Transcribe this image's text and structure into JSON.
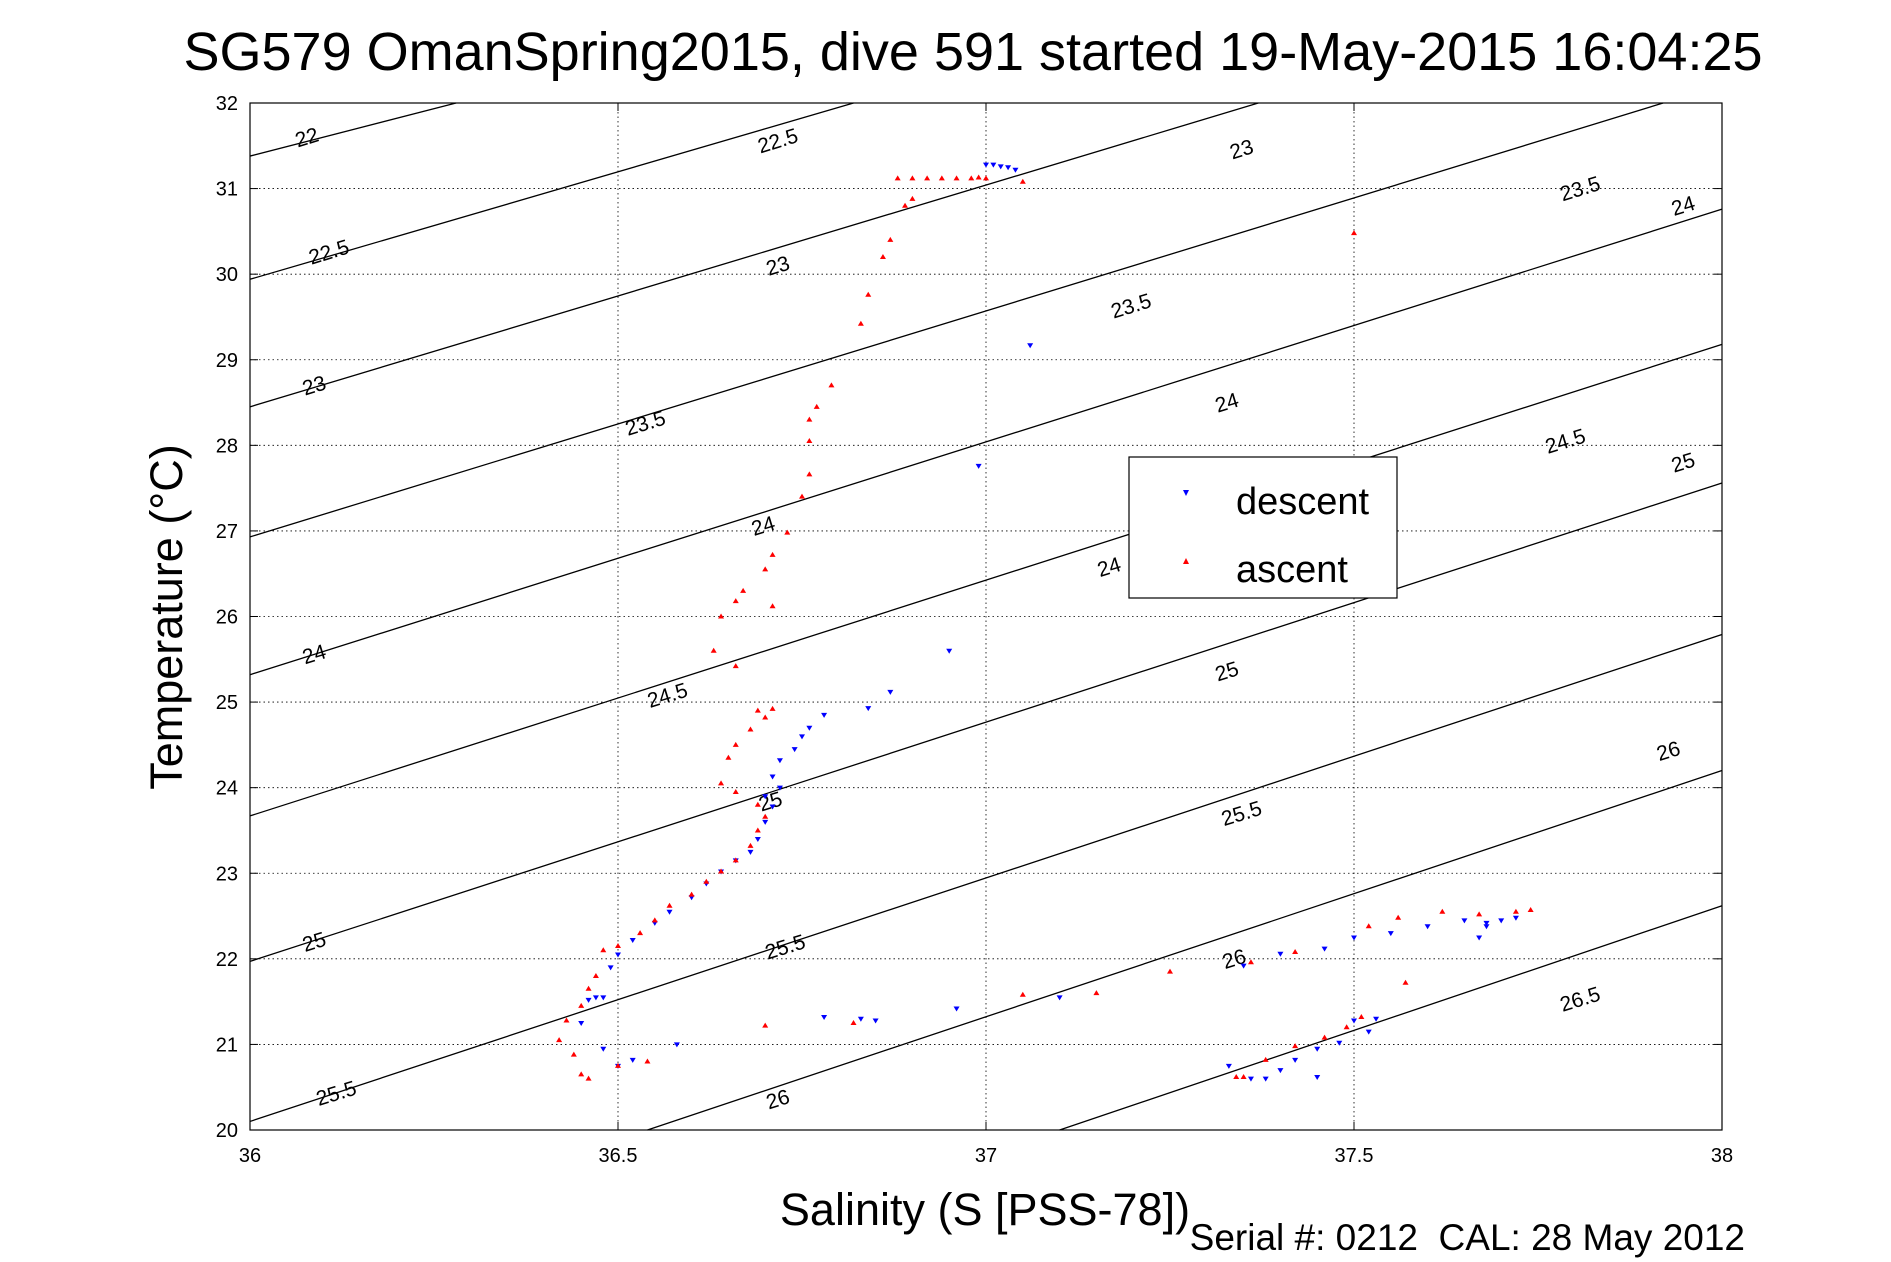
{
  "chart_data": {
    "type": "scatter",
    "title": "SG579 OmanSpring2015, dive 591 started 19-May-2015 16:04:25",
    "xlabel": "Salinity (S [PSS-78])",
    "ylabel": "Temperature (°C)",
    "xlim": [
      36,
      38
    ],
    "ylim": [
      20,
      32
    ],
    "x_ticks": [
      "36",
      "36.5",
      "37",
      "37.5",
      "38"
    ],
    "y_ticks": [
      "20",
      "21",
      "22",
      "23",
      "24",
      "25",
      "26",
      "27",
      "28",
      "29",
      "30",
      "31",
      "32"
    ],
    "grid": true,
    "legend_position": "upper-right",
    "footer": "Serial #: 0212  CAL: 28 May 2012",
    "contours": [
      {
        "label": "22",
        "points": [
          [
            36,
            31.38
          ],
          [
            36.28,
            32
          ]
        ]
      },
      {
        "label": "22.5",
        "points": [
          [
            36,
            29.94
          ],
          [
            36.82,
            32
          ]
        ]
      },
      {
        "label": "23",
        "points": [
          [
            36,
            28.45
          ],
          [
            37.37,
            32
          ]
        ]
      },
      {
        "label": "23.5",
        "points": [
          [
            36,
            26.93
          ],
          [
            37.92,
            32
          ]
        ]
      },
      {
        "label": "24",
        "points": [
          [
            36,
            25.32
          ],
          [
            38,
            30.76
          ]
        ]
      },
      {
        "label": "24.5",
        "points": [
          [
            36,
            23.67
          ],
          [
            38,
            29.18
          ]
        ]
      },
      {
        "label": "25",
        "points": [
          [
            36,
            21.97
          ],
          [
            38,
            27.56
          ]
        ]
      },
      {
        "label": "25.5",
        "points": [
          [
            36,
            20.1
          ],
          [
            38,
            25.79
          ]
        ]
      },
      {
        "label": "26",
        "points": [
          [
            36.54,
            20
          ],
          [
            38,
            24.2
          ]
        ]
      },
      {
        "label": "26.5",
        "points": [
          [
            37.1,
            20
          ],
          [
            38,
            22.62
          ]
        ]
      }
    ],
    "contour_labels": [
      {
        "text": "22",
        "x": 36.08,
        "y": 31.52
      },
      {
        "text": "22.5",
        "x": 36.72,
        "y": 31.48
      },
      {
        "text": "22.5",
        "x": 36.11,
        "y": 30.18
      },
      {
        "text": "23",
        "x": 37.35,
        "y": 31.38
      },
      {
        "text": "23",
        "x": 36.72,
        "y": 30.02
      },
      {
        "text": "23",
        "x": 36.09,
        "y": 28.62
      },
      {
        "text": "23.5",
        "x": 37.81,
        "y": 30.92
      },
      {
        "text": "23.5",
        "x": 37.2,
        "y": 29.55
      },
      {
        "text": "23.5",
        "x": 36.54,
        "y": 28.18
      },
      {
        "text": "24",
        "x": 37.95,
        "y": 30.72
      },
      {
        "text": "24",
        "x": 37.33,
        "y": 28.42
      },
      {
        "text": "24",
        "x": 36.7,
        "y": 26.98
      },
      {
        "text": "24",
        "x": 36.09,
        "y": 25.48
      },
      {
        "text": "24",
        "x": 37.17,
        "y": 26.5
      },
      {
        "text": "24.5",
        "x": 37.79,
        "y": 27.97
      },
      {
        "text": "24.5",
        "x": 36.57,
        "y": 25.0
      },
      {
        "text": "25",
        "x": 37.95,
        "y": 27.72
      },
      {
        "text": "25",
        "x": 37.33,
        "y": 25.28
      },
      {
        "text": "25",
        "x": 36.71,
        "y": 23.76
      },
      {
        "text": "25",
        "x": 36.09,
        "y": 22.12
      },
      {
        "text": "25.5",
        "x": 37.35,
        "y": 23.62
      },
      {
        "text": "25.5",
        "x": 36.73,
        "y": 22.06
      },
      {
        "text": "25.5",
        "x": 36.12,
        "y": 20.35
      },
      {
        "text": "26",
        "x": 37.93,
        "y": 24.35
      },
      {
        "text": "26",
        "x": 37.34,
        "y": 21.92
      },
      {
        "text": "26",
        "x": 36.72,
        "y": 20.28
      },
      {
        "text": "26.5",
        "x": 37.81,
        "y": 21.45
      }
    ],
    "series": [
      {
        "name": "descent",
        "color": "#0000ff",
        "marker": "triangle-down",
        "points": [
          [
            37.0,
            31.28
          ],
          [
            37.01,
            31.28
          ],
          [
            37.02,
            31.26
          ],
          [
            37.03,
            31.25
          ],
          [
            37.04,
            31.22
          ],
          [
            37.06,
            29.17
          ],
          [
            36.99,
            27.76
          ],
          [
            36.95,
            25.6
          ],
          [
            36.87,
            25.12
          ],
          [
            36.84,
            24.93
          ],
          [
            36.78,
            24.85
          ],
          [
            36.76,
            24.7
          ],
          [
            36.75,
            24.6
          ],
          [
            36.74,
            24.45
          ],
          [
            36.72,
            24.32
          ],
          [
            36.71,
            24.13
          ],
          [
            36.72,
            24.0
          ],
          [
            36.7,
            23.9
          ],
          [
            36.71,
            23.78
          ],
          [
            36.7,
            23.6
          ],
          [
            36.69,
            23.4
          ],
          [
            36.68,
            23.25
          ],
          [
            36.66,
            23.15
          ],
          [
            36.64,
            23.02
          ],
          [
            36.62,
            22.88
          ],
          [
            36.6,
            22.72
          ],
          [
            36.57,
            22.55
          ],
          [
            36.55,
            22.42
          ],
          [
            36.52,
            22.22
          ],
          [
            36.5,
            22.05
          ],
          [
            36.49,
            21.9
          ],
          [
            36.48,
            21.55
          ],
          [
            36.47,
            21.55
          ],
          [
            36.46,
            21.52
          ],
          [
            36.45,
            21.25
          ],
          [
            36.48,
            20.95
          ],
          [
            36.5,
            20.75
          ],
          [
            36.52,
            20.82
          ],
          [
            36.58,
            21.0
          ],
          [
            36.78,
            21.32
          ],
          [
            36.83,
            21.3
          ],
          [
            36.85,
            21.28
          ],
          [
            36.96,
            21.42
          ],
          [
            37.1,
            21.55
          ],
          [
            37.35,
            21.92
          ],
          [
            37.4,
            22.06
          ],
          [
            37.46,
            22.12
          ],
          [
            37.5,
            22.25
          ],
          [
            37.55,
            22.3
          ],
          [
            37.6,
            22.38
          ],
          [
            37.65,
            22.45
          ],
          [
            37.68,
            22.42
          ],
          [
            37.7,
            22.45
          ],
          [
            37.72,
            22.48
          ],
          [
            37.68,
            22.38
          ],
          [
            37.67,
            22.25
          ],
          [
            37.52,
            21.15
          ],
          [
            37.48,
            21.02
          ],
          [
            37.45,
            20.95
          ],
          [
            37.42,
            20.82
          ],
          [
            37.4,
            20.7
          ],
          [
            37.38,
            20.6
          ],
          [
            37.36,
            20.6
          ],
          [
            37.33,
            20.75
          ],
          [
            37.45,
            20.62
          ],
          [
            37.5,
            21.28
          ],
          [
            37.53,
            21.3
          ]
        ]
      },
      {
        "name": "ascent",
        "color": "#ff0000",
        "marker": "triangle-up",
        "points": [
          [
            36.88,
            31.12
          ],
          [
            36.9,
            31.12
          ],
          [
            36.92,
            31.12
          ],
          [
            36.94,
            31.12
          ],
          [
            36.96,
            31.12
          ],
          [
            36.98,
            31.12
          ],
          [
            36.99,
            31.13
          ],
          [
            37.0,
            31.12
          ],
          [
            37.05,
            31.08
          ],
          [
            36.9,
            30.88
          ],
          [
            36.89,
            30.8
          ],
          [
            36.87,
            30.4
          ],
          [
            36.86,
            30.2
          ],
          [
            36.84,
            29.76
          ],
          [
            36.83,
            29.42
          ],
          [
            36.79,
            28.7
          ],
          [
            36.77,
            28.45
          ],
          [
            36.76,
            28.3
          ],
          [
            36.76,
            28.05
          ],
          [
            36.76,
            27.66
          ],
          [
            36.75,
            27.4
          ],
          [
            36.73,
            26.98
          ],
          [
            36.71,
            26.72
          ],
          [
            36.7,
            26.55
          ],
          [
            36.71,
            26.12
          ],
          [
            36.67,
            26.3
          ],
          [
            36.66,
            26.18
          ],
          [
            36.64,
            26.0
          ],
          [
            36.66,
            25.42
          ],
          [
            36.63,
            25.6
          ],
          [
            36.69,
            24.9
          ],
          [
            36.7,
            24.82
          ],
          [
            36.71,
            24.92
          ],
          [
            36.68,
            24.68
          ],
          [
            36.66,
            24.5
          ],
          [
            36.65,
            24.35
          ],
          [
            36.64,
            24.05
          ],
          [
            36.66,
            23.95
          ],
          [
            36.69,
            23.8
          ],
          [
            36.7,
            23.66
          ],
          [
            36.69,
            23.5
          ],
          [
            36.68,
            23.32
          ],
          [
            36.66,
            23.15
          ],
          [
            36.64,
            23.02
          ],
          [
            36.62,
            22.9
          ],
          [
            36.6,
            22.75
          ],
          [
            36.57,
            22.62
          ],
          [
            36.55,
            22.45
          ],
          [
            36.53,
            22.3
          ],
          [
            36.5,
            22.15
          ],
          [
            36.48,
            22.1
          ],
          [
            36.47,
            21.8
          ],
          [
            36.46,
            21.65
          ],
          [
            36.45,
            21.45
          ],
          [
            36.43,
            21.28
          ],
          [
            36.42,
            21.05
          ],
          [
            36.44,
            20.88
          ],
          [
            36.45,
            20.65
          ],
          [
            36.46,
            20.6
          ],
          [
            36.5,
            20.75
          ],
          [
            36.54,
            20.8
          ],
          [
            36.7,
            21.22
          ],
          [
            36.82,
            21.25
          ],
          [
            37.05,
            21.58
          ],
          [
            37.15,
            21.6
          ],
          [
            37.25,
            21.85
          ],
          [
            37.36,
            21.96
          ],
          [
            37.42,
            22.08
          ],
          [
            37.52,
            22.38
          ],
          [
            37.56,
            22.48
          ],
          [
            37.62,
            22.55
          ],
          [
            37.67,
            22.52
          ],
          [
            37.72,
            22.55
          ],
          [
            37.74,
            22.57
          ],
          [
            37.57,
            21.72
          ],
          [
            37.51,
            21.32
          ],
          [
            37.49,
            21.2
          ],
          [
            37.46,
            21.08
          ],
          [
            37.42,
            20.98
          ],
          [
            37.38,
            20.82
          ],
          [
            37.35,
            20.62
          ],
          [
            37.34,
            20.62
          ],
          [
            37.5,
            30.48
          ]
        ]
      }
    ]
  }
}
